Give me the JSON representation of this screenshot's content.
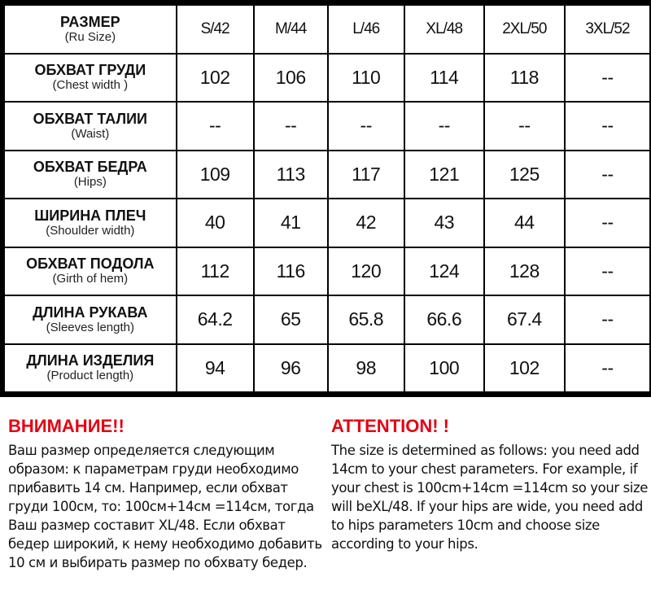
{
  "table": {
    "header": {
      "ru": "РАЗМЕР",
      "en": "(Ru Size)",
      "sizes": [
        "S/42",
        "M/44",
        "L/46",
        "XL/48",
        "2XL/50",
        "3XL/52"
      ]
    },
    "rows": [
      {
        "ru": "ОБХВАТ ГРУДИ",
        "en": "(Chest width )",
        "values": [
          "102",
          "106",
          "110",
          "114",
          "118",
          "--"
        ]
      },
      {
        "ru": "ОБХВАТ ТАЛИИ",
        "en": "(Waist)",
        "values": [
          "--",
          "--",
          "--",
          "--",
          "--",
          "--"
        ]
      },
      {
        "ru": "ОБХВАТ БЕДРА",
        "en": "(Hips)",
        "values": [
          "109",
          "113",
          "117",
          "121",
          "125",
          "--"
        ]
      },
      {
        "ru": "ШИРИНА ПЛЕЧ",
        "en": "(Shoulder width)",
        "values": [
          "40",
          "41",
          "42",
          "43",
          "44",
          "--"
        ]
      },
      {
        "ru": "ОБХВАТ ПОДОЛА",
        "en": "(Girth of hem)",
        "values": [
          "112",
          "116",
          "120",
          "124",
          "128",
          "--"
        ]
      },
      {
        "ru": "ДЛИНА РУКАВА",
        "en": "(Sleeves length)",
        "values": [
          "64.2",
          "65",
          "65.8",
          "66.6",
          "67.4",
          "--"
        ]
      },
      {
        "ru": "ДЛИНА ИЗДЕЛИЯ",
        "en": "(Product length)",
        "values": [
          "94",
          "96",
          "98",
          "100",
          "102",
          "--"
        ]
      }
    ]
  },
  "notes": {
    "ru": {
      "title": "ВНИМАНИЕ!!",
      "text": "Ваш размер определяется следующим образом: к параметрам груди необходимо прибавить 14 см. Например, если обхват груди 100см, то: 100см+14см =114см, тогда Ваш размер составит XL/48. Если обхват бедер широкий, к нему необходимо добавить 10 см и выбирать размер по обхвату бедер."
    },
    "en": {
      "title": "ATTENTION! !",
      "text": "The size is determined as follows: you need add 14cm to your chest parameters. For example, if your chest is 100cm+14cm =114cm so your size will beXL/48. If your hips are wide, you need add to hips parameters 10cm and choose size according to your hips."
    }
  },
  "colors": {
    "accent": "#e60012",
    "frame": "#000000"
  }
}
